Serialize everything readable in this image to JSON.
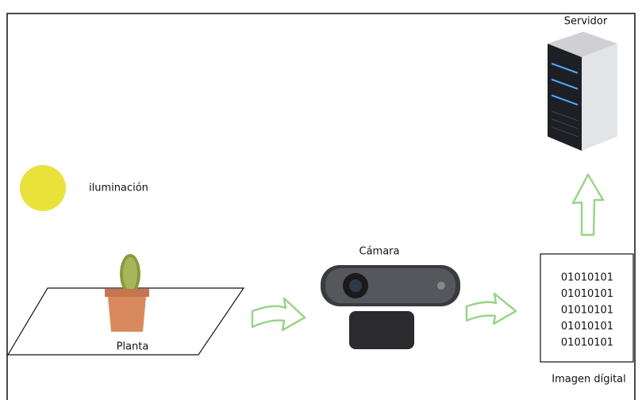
{
  "labels": {
    "server": "Servidor",
    "light": "iluminación",
    "camera": "Cámara",
    "plant": "Planta",
    "image": "Imagen dígital"
  },
  "binary": {
    "lines": [
      "01010101",
      "01010101",
      "01010101",
      "01010101",
      "01010101"
    ]
  }
}
